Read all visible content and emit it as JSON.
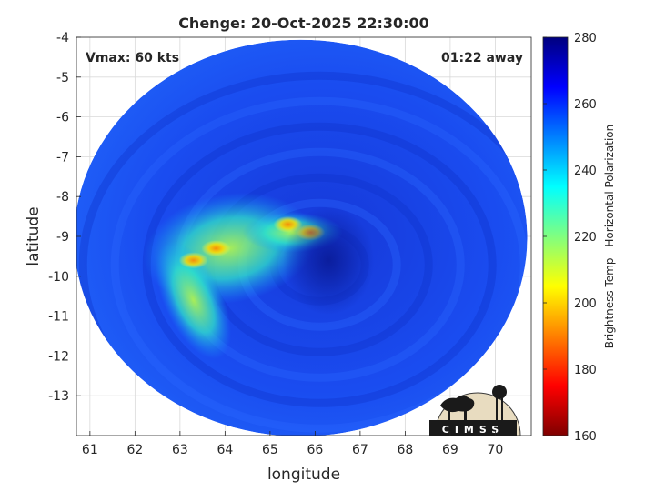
{
  "chart_data": {
    "type": "heatmap",
    "title": "Chenge: 20-Oct-2025 22:30:00",
    "xlabel": "longitude",
    "ylabel": "latitude",
    "xlim": [
      60.7,
      70.8
    ],
    "ylim": [
      -14.0,
      -4.0
    ],
    "x_ticks": [
      "61",
      "62",
      "63",
      "64",
      "65",
      "66",
      "67",
      "68",
      "69",
      "70"
    ],
    "y_ticks": [
      "-4",
      "-5",
      "-6",
      "-7",
      "-8",
      "-9",
      "-10",
      "-11",
      "-12",
      "-13"
    ],
    "grid": true,
    "annotations": {
      "vmax": "Vmax: 60 kts",
      "away": "01:22 away"
    },
    "colorbar": {
      "label": "Brightness Temp - Horizontal Polarization",
      "ticks": [
        "280",
        "260",
        "240",
        "220",
        "200",
        "180",
        "160"
      ],
      "range": [
        160,
        280
      ],
      "colormap": "jet"
    },
    "swath": {
      "center": [
        65.7,
        -9.2
      ],
      "background_temp": 258,
      "eye": {
        "center": [
          66.3,
          -9.6
        ],
        "temp": 270
      },
      "warm_band": {
        "center": [
          64.5,
          -9.3
        ],
        "temp": 212
      },
      "hot_spots": [
        {
          "lon": 65.9,
          "lat": -8.9,
          "temp": 196
        },
        {
          "lon": 65.4,
          "lat": -8.7,
          "temp": 200
        },
        {
          "lon": 63.3,
          "lat": -9.6,
          "temp": 198
        },
        {
          "lon": 63.8,
          "lat": -9.3,
          "temp": 202
        }
      ]
    },
    "logo_text": "CIMSS"
  }
}
